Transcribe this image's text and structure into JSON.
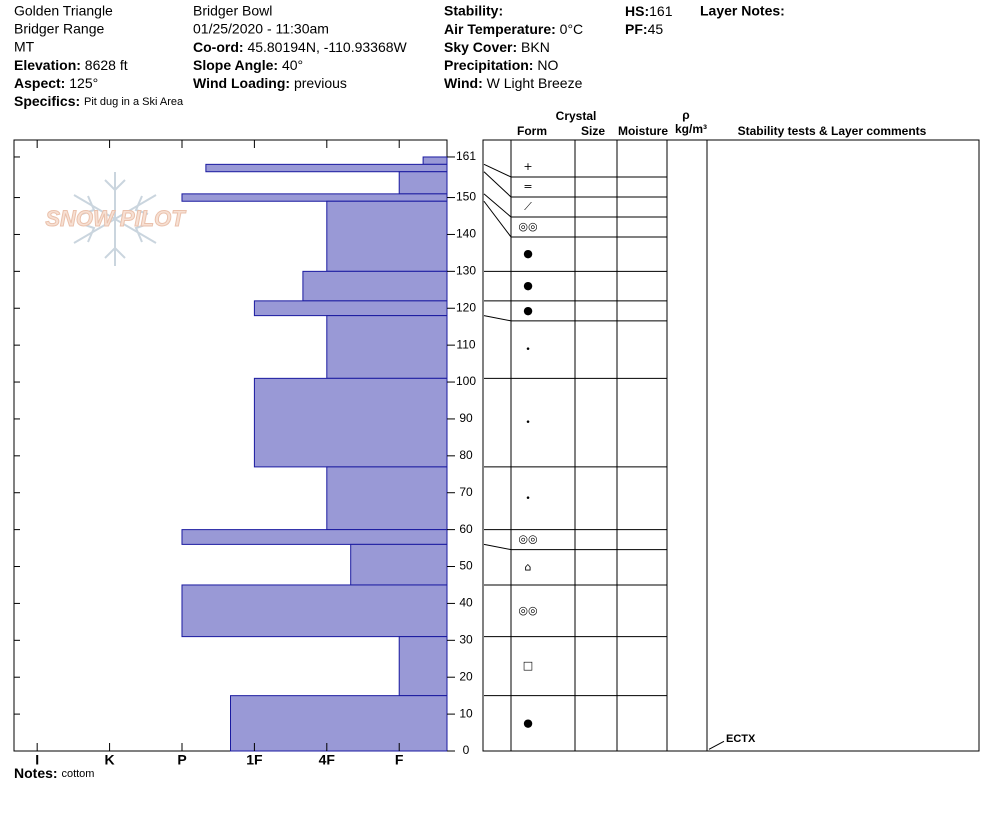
{
  "header": {
    "location": [
      "Golden Triangle",
      "Bridger Range",
      "MT"
    ],
    "site": "Bridger Bowl",
    "datetime": "01/25/2020 - 11:30am",
    "elevation": {
      "label": "Elevation:",
      "value": "8628 ft"
    },
    "aspect": {
      "label": "Aspect:",
      "value": "125°"
    },
    "specifics": {
      "label": "Specifics:",
      "value": "Pit dug in a Ski Area"
    },
    "coord": {
      "label": "Co-ord:",
      "value": "45.80194N, -110.93368W"
    },
    "slope": {
      "label": "Slope Angle:",
      "value": "40°"
    },
    "wind_loading": {
      "label": "Wind Loading:",
      "value": "previous"
    },
    "stability": {
      "label": "Stability:"
    },
    "air_temp": {
      "label": "Air Temperature:",
      "value": "0°C"
    },
    "sky": {
      "label": "Sky Cover:",
      "value": "BKN"
    },
    "precip": {
      "label": "Precipitation:",
      "value": "NO"
    },
    "wind": {
      "label": "Wind:",
      "value": "W Light Breeze"
    },
    "hs": {
      "label": "HS:",
      "value": "161"
    },
    "pf": {
      "label": "PF:",
      "value": "45"
    },
    "layer_notes": {
      "label": "Layer Notes:"
    }
  },
  "logo": "SNOW PILOT",
  "notes": {
    "label": "Notes:",
    "value": "cottom"
  },
  "chart_data": {
    "type": "snow-profile",
    "xlim": [
      6.32,
      0.34
    ],
    "xticks": [
      {
        "value": 6,
        "label": "I"
      },
      {
        "value": 5,
        "label": "K"
      },
      {
        "value": 4,
        "label": "P"
      },
      {
        "value": 3,
        "label": "1F"
      },
      {
        "value": 2,
        "label": "4F"
      },
      {
        "value": 1,
        "label": "F"
      }
    ],
    "ylim": [
      0,
      165.6
    ],
    "yticks": [
      0,
      10,
      20,
      30,
      40,
      50,
      60,
      70,
      80,
      90,
      100,
      110,
      120,
      130,
      140,
      150,
      161
    ],
    "bar_color": "#9999d6",
    "edge_color": "#1a1aa0",
    "column_labels": {
      "crystal": "Crystal",
      "form": "Form",
      "size": "Size",
      "moisture": "Moisture",
      "rho": "ρ",
      "density_unit": "kg/m³",
      "comments": "Stability tests & Layer comments"
    },
    "layers": [
      {
        "top": 161,
        "bottom": 159,
        "hardness": 0.67,
        "grain": "+"
      },
      {
        "top": 159,
        "bottom": 157,
        "hardness": 3.67,
        "grain": "="
      },
      {
        "top": 157,
        "bottom": 151,
        "hardness": 1,
        "grain": "⟋"
      },
      {
        "top": 151,
        "bottom": 149,
        "hardness": 4,
        "grain": "◎◎"
      },
      {
        "top": 149,
        "bottom": 130,
        "hardness": 2,
        "grain": "●"
      },
      {
        "top": 130,
        "bottom": 122,
        "hardness": 2.33,
        "grain": "●"
      },
      {
        "top": 122,
        "bottom": 118,
        "hardness": 3,
        "grain": "●"
      },
      {
        "top": 118,
        "bottom": 101,
        "hardness": 2,
        "grain": "•"
      },
      {
        "top": 101,
        "bottom": 77,
        "hardness": 3,
        "grain": "•"
      },
      {
        "top": 77,
        "bottom": 60,
        "hardness": 2,
        "grain": "•"
      },
      {
        "top": 60,
        "bottom": 56,
        "hardness": 4,
        "grain": "◎◎"
      },
      {
        "top": 56,
        "bottom": 45,
        "hardness": 1.67,
        "grain": "⌂"
      },
      {
        "top": 45,
        "bottom": 31,
        "hardness": 4,
        "grain": "◎◎"
      },
      {
        "top": 31,
        "bottom": 15,
        "hardness": 1,
        "grain": "□"
      },
      {
        "top": 15,
        "bottom": 0,
        "hardness": 3.33,
        "grain": "●"
      }
    ],
    "stability_tests": [
      {
        "label": "ECTX",
        "height": 1
      }
    ]
  }
}
